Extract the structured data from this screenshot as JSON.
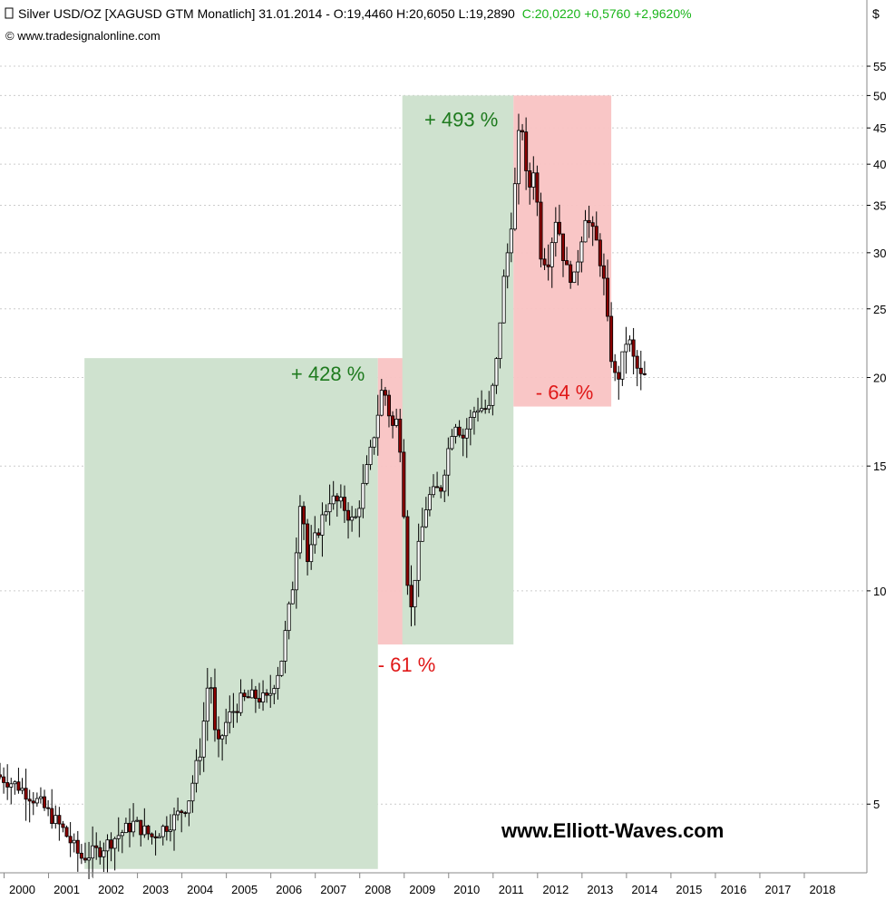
{
  "header": {
    "title_prefix": "Silver USD/OZ [XAGUSD GTM  Monatlich] 31.01.2014 - O:19,4460 H:20,6050 L:19,2890",
    "title_change": "C:20,0220 +0,5760 +2,9620%",
    "copyright": "© www.tradesignalonline.com",
    "currency": "$"
  },
  "watermark": "www.Elliott-Waves.com",
  "colors": {
    "up_zone": "#cfe2cf",
    "down_zone": "#f9c3c3",
    "up_text": "#1e7a1e",
    "down_text": "#e01818",
    "candle_down": "#8b0000",
    "candle_up": "#ffffff",
    "grid": "#cccccc",
    "header_green": "#19b419"
  },
  "chart_data": {
    "type": "candlestick",
    "title": "Silver USD/OZ [XAGUSD GTM  Monatlich]",
    "scale": "log",
    "ylim": [
      4.0,
      58
    ],
    "yticks": [
      5,
      10,
      15,
      20,
      25,
      30,
      35,
      40,
      45,
      50,
      55
    ],
    "xlim": [
      1999.5,
      2019.0
    ],
    "xticks": [
      2000,
      2001,
      2002,
      2003,
      2004,
      2005,
      2006,
      2007,
      2008,
      2009,
      2010,
      2011,
      2012,
      2013,
      2014,
      2015,
      2016,
      2017,
      2018
    ],
    "grid": "horizontal dotted",
    "zones": [
      {
        "kind": "up",
        "label": "+ 428 %",
        "x_start": 2001.4,
        "x_end": 2008.0,
        "y_low": 4.05,
        "y_high": 21.3
      },
      {
        "kind": "down",
        "label": "- 61 %",
        "x_start": 2008.0,
        "x_end": 2008.62,
        "y_low": 8.4,
        "y_high": 21.3
      },
      {
        "kind": "up",
        "label": "+ 493 %",
        "x_start": 2008.55,
        "x_end": 2011.05,
        "y_low": 8.4,
        "y_high": 50.0
      },
      {
        "kind": "down",
        "label": "- 64 %",
        "x_start": 2011.05,
        "x_end": 2013.25,
        "y_low": 18.2,
        "y_high": 50.0
      }
    ],
    "price_path_keypoints": [
      [
        1999.5,
        5.5
      ],
      [
        2000.0,
        5.3
      ],
      [
        2000.5,
        5.0
      ],
      [
        2001.0,
        4.6
      ],
      [
        2001.4,
        4.2
      ],
      [
        2001.8,
        4.3
      ],
      [
        2002.2,
        4.5
      ],
      [
        2002.6,
        4.7
      ],
      [
        2003.0,
        4.5
      ],
      [
        2003.4,
        4.7
      ],
      [
        2003.8,
        5.0
      ],
      [
        2004.1,
        6.0
      ],
      [
        2004.3,
        7.8
      ],
      [
        2004.45,
        5.9
      ],
      [
        2004.7,
        6.6
      ],
      [
        2005.0,
        7.0
      ],
      [
        2005.3,
        7.1
      ],
      [
        2005.6,
        7.0
      ],
      [
        2005.9,
        7.9
      ],
      [
        2006.2,
        10.5
      ],
      [
        2006.35,
        13.9
      ],
      [
        2006.5,
        11.0
      ],
      [
        2006.8,
        12.5
      ],
      [
        2007.0,
        13.5
      ],
      [
        2007.3,
        13.2
      ],
      [
        2007.55,
        12.4
      ],
      [
        2007.75,
        14.0
      ],
      [
        2007.95,
        16.0
      ],
      [
        2008.2,
        19.6
      ],
      [
        2008.4,
        17.0
      ],
      [
        2008.55,
        17.5
      ],
      [
        2008.7,
        12.0
      ],
      [
        2008.8,
        9.0
      ],
      [
        2008.95,
        11.0
      ],
      [
        2009.2,
        13.5
      ],
      [
        2009.5,
        14.0
      ],
      [
        2009.8,
        17.5
      ],
      [
        2010.0,
        16.5
      ],
      [
        2010.3,
        18.2
      ],
      [
        2010.6,
        18.0
      ],
      [
        2010.75,
        21.0
      ],
      [
        2010.9,
        27.0
      ],
      [
        2011.0,
        30.0
      ],
      [
        2011.15,
        36.0
      ],
      [
        2011.3,
        48.0
      ],
      [
        2011.45,
        36.0
      ],
      [
        2011.6,
        40.0
      ],
      [
        2011.75,
        30.0
      ],
      [
        2011.9,
        29.0
      ],
      [
        2012.1,
        34.0
      ],
      [
        2012.3,
        28.5
      ],
      [
        2012.5,
        27.5
      ],
      [
        2012.75,
        34.0
      ],
      [
        2013.0,
        31.0
      ],
      [
        2013.15,
        28.0
      ],
      [
        2013.3,
        22.0
      ],
      [
        2013.45,
        19.5
      ],
      [
        2013.6,
        21.5
      ],
      [
        2013.7,
        23.0
      ],
      [
        2013.85,
        21.0
      ],
      [
        2014.0,
        20.0
      ]
    ],
    "last_bar": {
      "date": "31.01.2014",
      "open": 19.446,
      "high": 20.605,
      "low": 19.289,
      "close": 20.022,
      "change": 0.576,
      "change_pct": 2.962
    }
  }
}
